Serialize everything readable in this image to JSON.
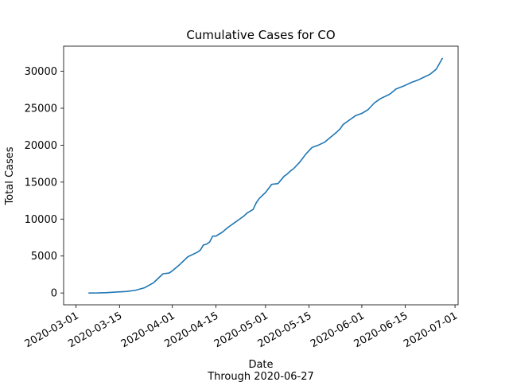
{
  "chart_data": {
    "type": "line",
    "title": "Cumulative Cases for CO",
    "xlabel": "Date",
    "xlabel_sub": "Through 2020-06-27",
    "ylabel": "Total Cases",
    "xlim": [
      "2020-02-26",
      "2020-07-02"
    ],
    "ylim": [
      -1600,
      33400
    ],
    "x_ticks": [
      "2020-03-01",
      "2020-03-15",
      "2020-04-01",
      "2020-04-15",
      "2020-05-01",
      "2020-05-15",
      "2020-06-01",
      "2020-06-15",
      "2020-07-01"
    ],
    "y_ticks": [
      0,
      5000,
      10000,
      15000,
      20000,
      25000,
      30000
    ],
    "grid": false,
    "line_color": "#1f77b4",
    "series": [
      {
        "x": [
          "2020-03-05",
          "2020-03-08",
          "2020-03-11",
          "2020-03-14",
          "2020-03-17",
          "2020-03-20",
          "2020-03-23",
          "2020-03-26",
          "2020-03-29",
          "2020-03-31",
          "2020-04-01",
          "2020-04-03",
          "2020-04-06",
          "2020-04-09",
          "2020-04-10",
          "2020-04-11",
          "2020-04-12",
          "2020-04-13",
          "2020-04-14",
          "2020-04-15",
          "2020-04-17",
          "2020-04-19",
          "2020-04-21",
          "2020-04-23",
          "2020-04-24",
          "2020-04-25",
          "2020-04-27",
          "2020-04-28",
          "2020-04-29",
          "2020-05-01",
          "2020-05-03",
          "2020-05-05",
          "2020-05-06",
          "2020-05-07",
          "2020-05-08",
          "2020-05-09",
          "2020-05-10",
          "2020-05-12",
          "2020-05-14",
          "2020-05-16",
          "2020-05-18",
          "2020-05-20",
          "2020-05-22",
          "2020-05-24",
          "2020-05-25",
          "2020-05-26",
          "2020-05-28",
          "2020-05-30",
          "2020-06-01",
          "2020-06-03",
          "2020-06-05",
          "2020-06-07",
          "2020-06-10",
          "2020-06-12",
          "2020-06-15",
          "2020-06-17",
          "2020-06-19",
          "2020-06-21",
          "2020-06-23",
          "2020-06-25",
          "2020-06-27"
        ],
        "y": [
          0,
          10,
          50,
          130,
          200,
          350,
          700,
          1400,
          2600,
          2700,
          3000,
          3700,
          4900,
          5500,
          5800,
          6500,
          6600,
          6900,
          7700,
          7700,
          8200,
          8900,
          9500,
          10100,
          10400,
          10800,
          11300,
          12200,
          12800,
          13600,
          14700,
          14800,
          15300,
          15800,
          16100,
          16500,
          16800,
          17700,
          18800,
          19700,
          20000,
          20400,
          21100,
          21800,
          22200,
          22800,
          23400,
          24000,
          24300,
          24800,
          25700,
          26300,
          26900,
          27600,
          28100,
          28500,
          28800,
          29200,
          29600,
          30300,
          31800
        ]
      }
    ]
  }
}
